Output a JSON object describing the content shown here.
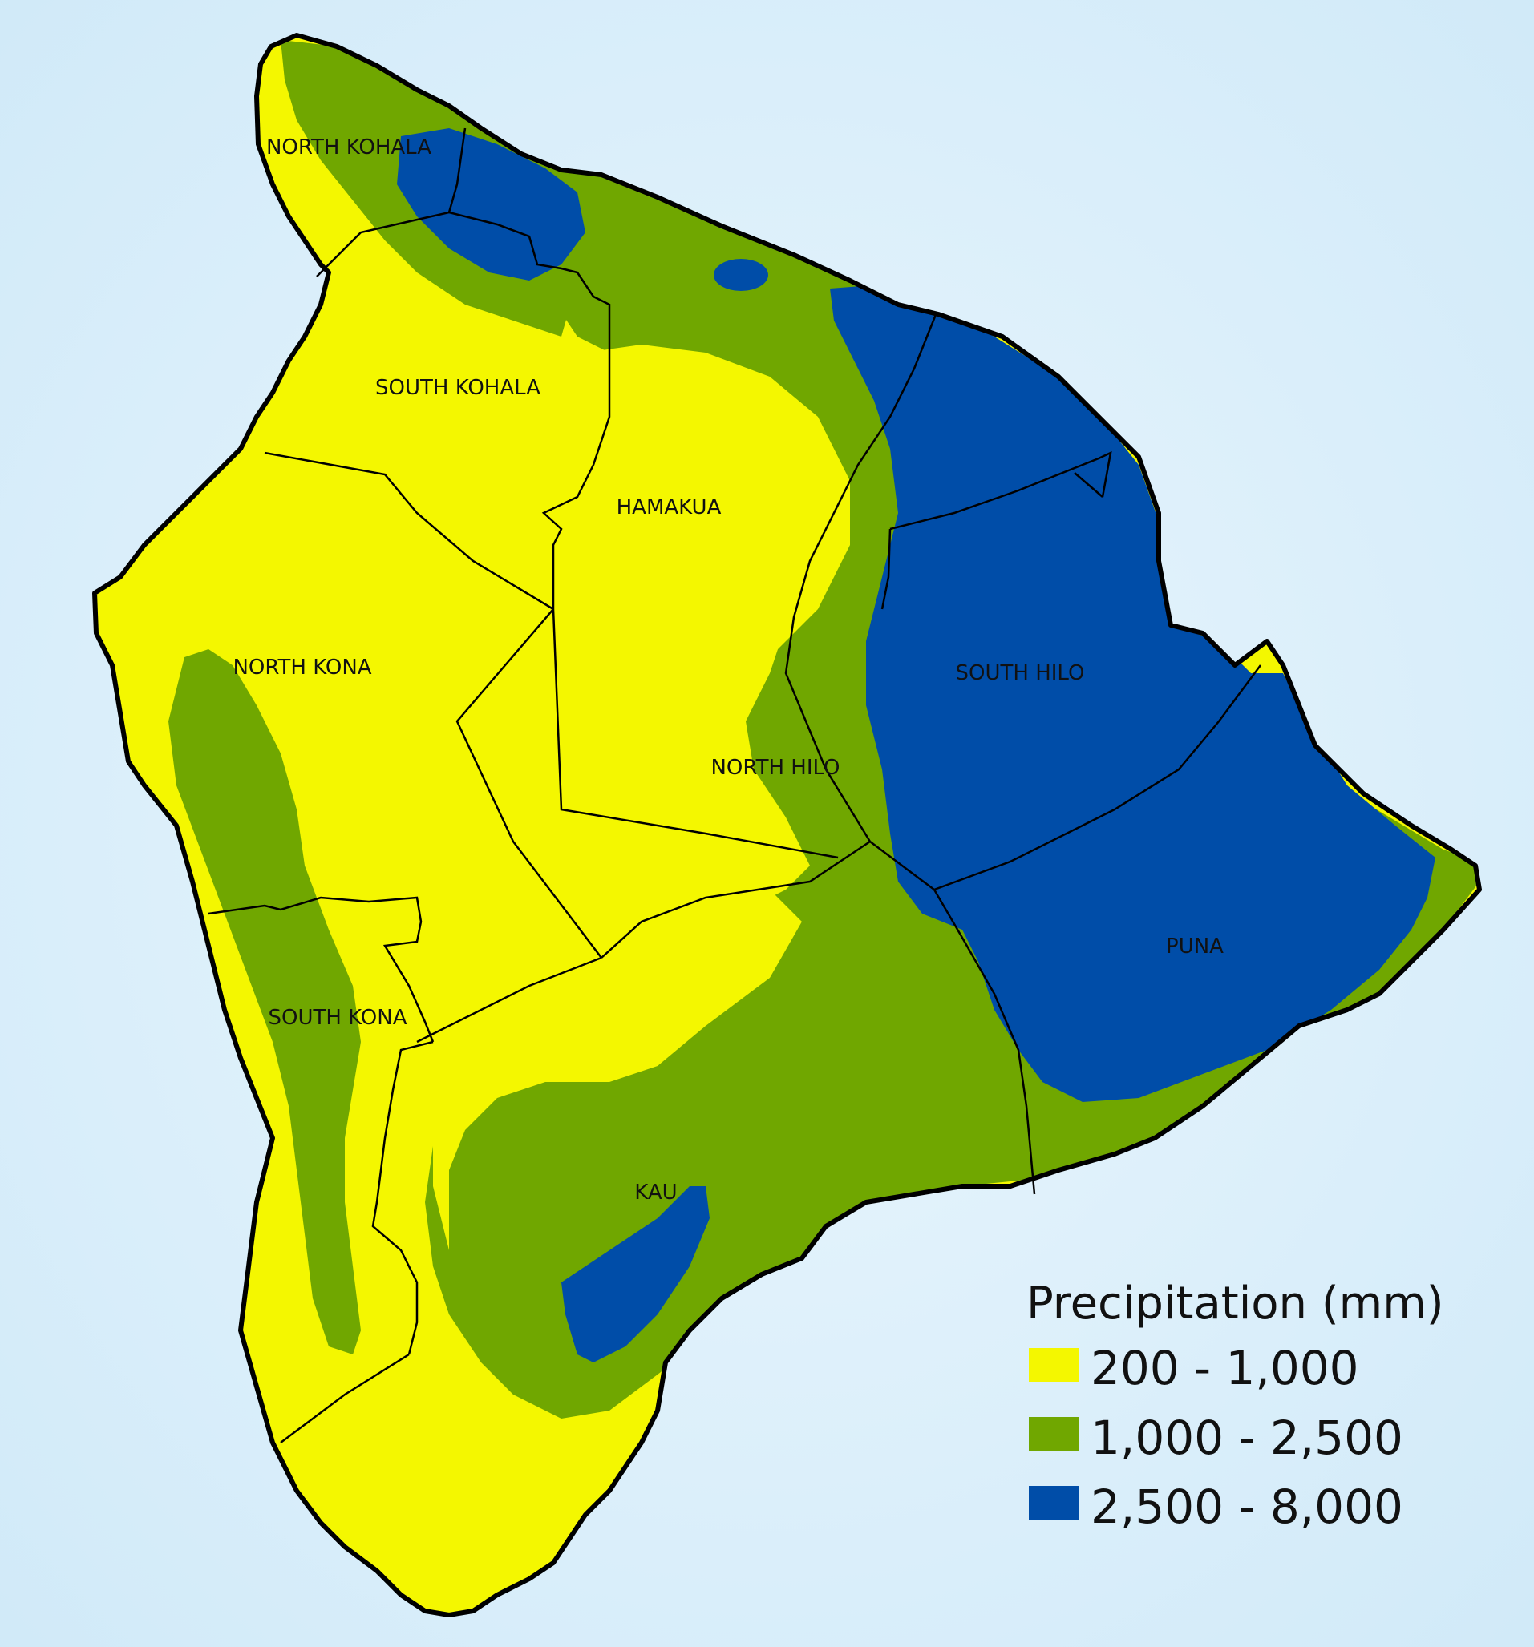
{
  "map": {
    "colors": {
      "ocean": "#d4ecf8",
      "ocean_light": "#eaf6fd",
      "class_low": "#f4f700",
      "class_mid": "#70a700",
      "class_high": "#004da8",
      "outline": "#000000"
    },
    "districts": [
      {
        "id": "north-kohala",
        "label": "NORTH KOHALA"
      },
      {
        "id": "south-kohala",
        "label": "SOUTH KOHALA"
      },
      {
        "id": "hamakua",
        "label": "HAMAKUA"
      },
      {
        "id": "north-kona",
        "label": "NORTH KONA"
      },
      {
        "id": "south-hilo",
        "label": "SOUTH HILO"
      },
      {
        "id": "north-hilo",
        "label": "NORTH HILO"
      },
      {
        "id": "puna",
        "label": "PUNA"
      },
      {
        "id": "south-kona",
        "label": "SOUTH KONA"
      },
      {
        "id": "kau",
        "label": "KAU"
      }
    ]
  },
  "legend": {
    "title": "Precipitation (mm)",
    "items": [
      {
        "label": "200 - 1,000",
        "color": "#f4f700"
      },
      {
        "label": "1,000 - 2,500",
        "color": "#70a700"
      },
      {
        "label": "2,500 - 8,000",
        "color": "#004da8"
      }
    ]
  }
}
